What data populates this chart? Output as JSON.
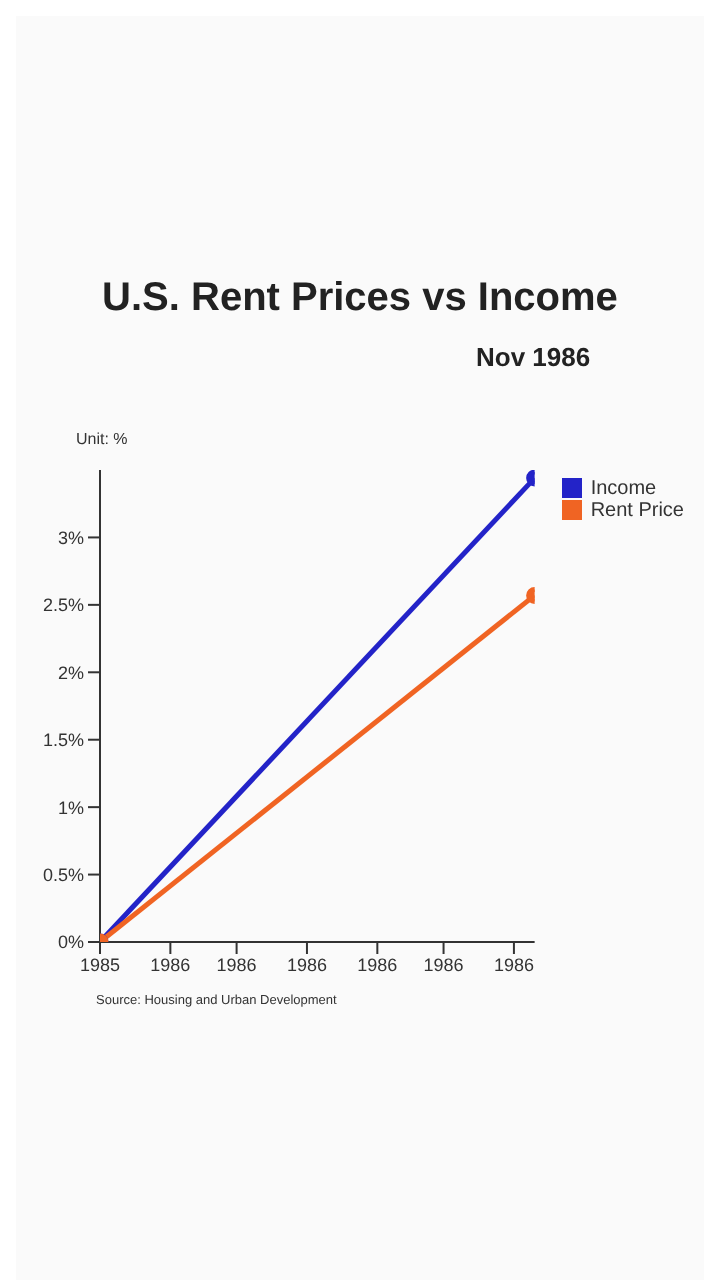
{
  "chart_data": {
    "type": "line",
    "title": "U.S. Rent Prices vs Income",
    "ylabel": "Unit: %",
    "annotations": [
      "Nov 1986",
      "Source: Housing and Urban Development"
    ],
    "x": [
      1985.45,
      1986.5
    ],
    "series": [
      {
        "name": "Income",
        "color": "#2323c8",
        "values": [
          0,
          3.44
        ]
      },
      {
        "name": "Rent Price",
        "color": "#f06423",
        "values": [
          0,
          2.57
        ]
      }
    ],
    "xlim": [
      1985.45,
      1986.5
    ],
    "xticks": [
      {
        "value": 1985.45,
        "label": "1985"
      },
      {
        "value": 1985.62,
        "label": "1986"
      },
      {
        "value": 1985.78,
        "label": "1986"
      },
      {
        "value": 1985.95,
        "label": "1986"
      },
      {
        "value": 1986.12,
        "label": "1986"
      },
      {
        "value": 1986.28,
        "label": "1986"
      },
      {
        "value": 1986.45,
        "label": "1986"
      }
    ],
    "ylim": [
      0,
      3.5
    ],
    "yticks": [
      {
        "value": 0,
        "label": "0%"
      },
      {
        "value": 0.5,
        "label": "0.5%"
      },
      {
        "value": 1,
        "label": "1%"
      },
      {
        "value": 1.5,
        "label": "1.5%"
      },
      {
        "value": 2,
        "label": "2%"
      },
      {
        "value": 2.5,
        "label": "2.5%"
      },
      {
        "value": 3,
        "label": "3%"
      }
    ],
    "grid": false,
    "legend": "top right",
    "marker": "circle",
    "line_style": "solid"
  }
}
